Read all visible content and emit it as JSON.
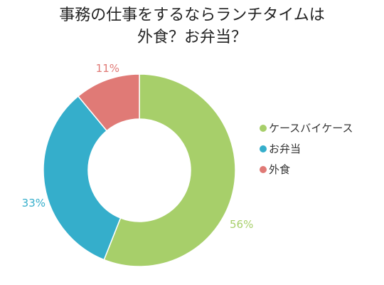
{
  "chart_data": {
    "type": "pie",
    "title_lines": [
      "事務の仕事をするならランチタイムは",
      "外食？お弁当？"
    ],
    "slices": [
      {
        "label": "ケースバイケース",
        "value": 56,
        "value_label": "56%",
        "color": "#a7cf6a"
      },
      {
        "label": "お弁当",
        "value": 33,
        "value_label": "33%",
        "color": "#35aecb"
      },
      {
        "label": "外食",
        "value": 11,
        "value_label": "11%",
        "color": "#e07a76"
      }
    ],
    "donut": true,
    "start": "12 o'clock, clockwise",
    "legend_position": "right"
  }
}
